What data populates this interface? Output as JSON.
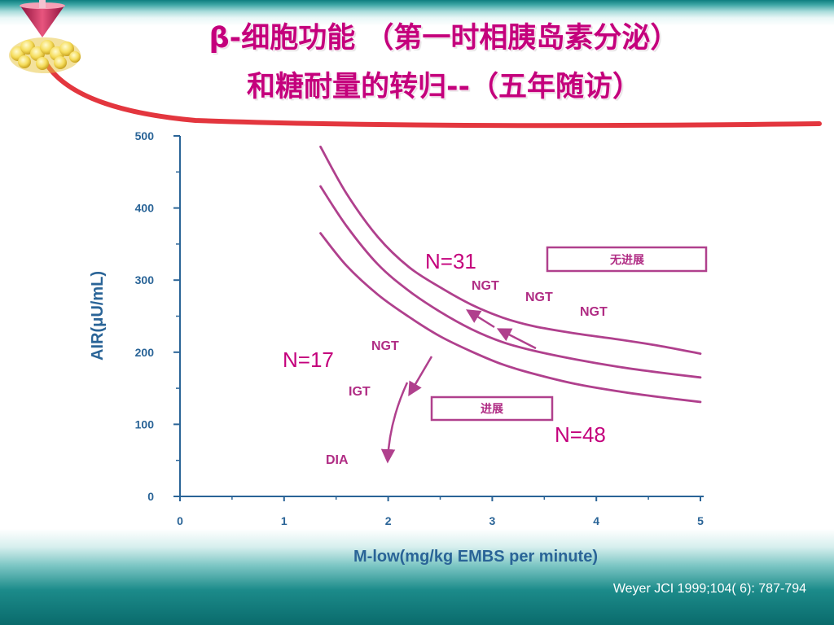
{
  "slide": {
    "title_line1": "β-细胞功能 （第一时相胰岛素分泌）",
    "title_line2": "和糖耐量的转归--（五年随访）",
    "citation": "Weyer JCI 1999;104( 6): 787-794",
    "colors": {
      "accent": "#c4007c",
      "axis": "#2a6497",
      "curve": "#b0408d",
      "teal": "#0d7f80"
    },
    "decor_icons": [
      "pancreas-icon",
      "funnel-icon",
      "swoosh-line"
    ]
  },
  "chart_data": {
    "type": "line",
    "title": "",
    "xlabel": "M-low(mg/kg EMBS per minute)",
    "ylabel": "AIR(μU/mL)",
    "xlim": [
      0,
      5
    ],
    "ylim": [
      0,
      500
    ],
    "x_ticks": [
      "0",
      "1",
      "2",
      "3",
      "4",
      "5"
    ],
    "y_ticks": [
      "0",
      "100",
      "200",
      "300",
      "400",
      "500"
    ],
    "grid": false,
    "series": [
      {
        "x": [
          1.35,
          1.6,
          1.9,
          2.2,
          2.5,
          2.8,
          3.1,
          3.4,
          3.8,
          4.2,
          4.6,
          5.0
        ],
        "y": [
          485,
          420,
          360,
          318,
          290,
          266,
          248,
          236,
          226,
          218,
          209,
          198
        ]
      },
      {
        "x": [
          1.35,
          1.6,
          1.9,
          2.2,
          2.5,
          2.8,
          3.1,
          3.4,
          3.8,
          4.2,
          4.6,
          5.0
        ],
        "y": [
          430,
          375,
          322,
          285,
          256,
          232,
          214,
          202,
          190,
          180,
          172,
          165
        ]
      },
      {
        "x": [
          1.35,
          1.6,
          1.9,
          2.2,
          2.5,
          2.8,
          3.1,
          3.4,
          3.8,
          4.2,
          4.6,
          5.0
        ],
        "y": [
          365,
          320,
          280,
          249,
          222,
          201,
          183,
          170,
          156,
          146,
          138,
          131
        ]
      }
    ],
    "annotations": {
      "n31": "N=31",
      "n17": "N=17",
      "n48": "N=48",
      "ngt1": "NGT",
      "ngt2": "NGT",
      "ngt3": "NGT",
      "ngt4": "NGT",
      "igt": "IGT",
      "dia": "DIA",
      "no_progress": "无进展",
      "progress": "进展"
    }
  }
}
